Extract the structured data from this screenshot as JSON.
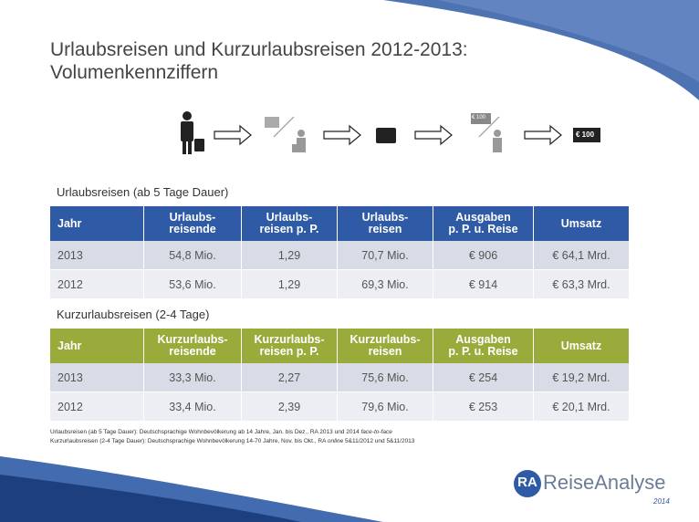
{
  "header": {
    "title_lines": [
      "Urlaubsreisen und Kurzurlaubsreisen 2012-2013:",
      "Volumenkennziffern"
    ]
  },
  "icons": {
    "labels": [
      "€ 100",
      "€ 100"
    ]
  },
  "tables": [
    {
      "caption": "Urlaubsreisen (ab 5 Tage Dauer)",
      "header_color": "#2f5ba6",
      "columns": [
        [
          "Jahr"
        ],
        [
          "Urlaubs-",
          "reisende"
        ],
        [
          "Urlaubs-",
          "reisen p. P."
        ],
        [
          "Urlaubs-",
          "reisen"
        ],
        [
          "Ausgaben",
          "p. P. u. Reise"
        ],
        [
          "Umsatz"
        ]
      ],
      "rows": [
        [
          "2013",
          "54,8 Mio.",
          "1,29",
          "70,7 Mio.",
          "€ 906",
          "€ 64,1 Mrd."
        ],
        [
          "2012",
          "53,6 Mio.",
          "1,29",
          "69,3 Mio.",
          "€ 914",
          "€ 63,3 Mrd."
        ]
      ]
    },
    {
      "caption": "Kurzurlaubsreisen (2-4 Tage)",
      "header_color": "#9aab3b",
      "columns": [
        [
          "Jahr"
        ],
        [
          "Kurzurlaubs-",
          "reisende"
        ],
        [
          "Kurzurlaubs-",
          "reisen p. P."
        ],
        [
          "Kurzurlaubs-",
          "reisen"
        ],
        [
          "Ausgaben",
          "p. P. u. Reise"
        ],
        [
          "Umsatz"
        ]
      ],
      "rows": [
        [
          "2013",
          "33,3 Mio.",
          "2,27",
          "75,6 Mio.",
          "€ 254",
          "€ 19,2 Mrd."
        ],
        [
          "2012",
          "33,4 Mio.",
          "2,39",
          "79,6 Mio.",
          "€ 253",
          "€ 20,1 Mrd."
        ]
      ]
    }
  ],
  "footnotes": [
    [
      {
        "text": "Urlaubsreisen (ab 5 Tage Dauer): Deutschsprachige Wohnbevölkerung ab 14 Jahre, Jan. bis Dez., RA 2013 und 2014 ",
        "italic": false
      },
      {
        "text": "face-to-face",
        "italic": true
      }
    ],
    [
      {
        "text": "Kurzurlaubsreisen (2-4 Tage Dauer): Deutschsprachige Wohnbevölkerung 14-70 Jahre, Nov. bis Okt., RA ",
        "italic": false
      },
      {
        "text": "online",
        "italic": true
      },
      {
        "text": " 5&11/2012 und 5&11/2013",
        "italic": false
      }
    ]
  ],
  "logo": {
    "mark": "RA",
    "name": "ReiseAnalyse",
    "year": "2014"
  }
}
